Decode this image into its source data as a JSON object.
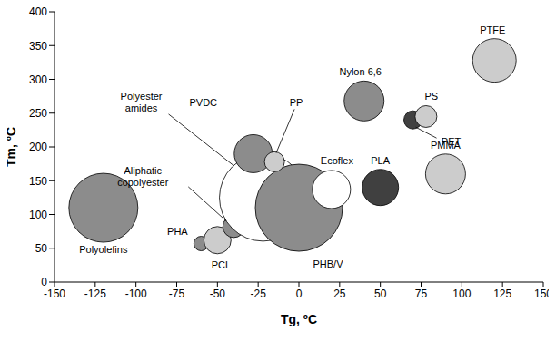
{
  "chart_data": {
    "type": "scatter",
    "marker": "circle",
    "grid": false,
    "x_label": "Tg, ºC",
    "y_label": "Tm, ºC",
    "xlim": [
      -150,
      150
    ],
    "xticks": [
      -150,
      -125,
      -100,
      -75,
      -50,
      -25,
      0,
      25,
      50,
      75,
      100,
      125,
      150
    ],
    "ylim": [
      0,
      400
    ],
    "yticks": [
      0,
      50,
      100,
      150,
      200,
      250,
      300,
      350,
      400
    ],
    "points": [
      {
        "label": "Polyolefins",
        "x": -120,
        "y": 110,
        "size": 38,
        "color": "#8c8c8c"
      },
      {
        "label": "PHA",
        "x": -60,
        "y": 57,
        "size": 8,
        "color": "#8c8c8c"
      },
      {
        "label": "PCL",
        "x": -50,
        "y": 62,
        "size": 15,
        "color": "#cccccc"
      },
      {
        "label": "Aliphatic copolyester",
        "x": -40,
        "y": 82,
        "size": 12,
        "color": "#8c8c8c"
      },
      {
        "label": "Polyester amides",
        "x": -22,
        "y": 125,
        "size": 48,
        "color": "#ffffff"
      },
      {
        "label": "PHB/V",
        "x": 0,
        "y": 110,
        "size": 48,
        "color": "#8c8c8c"
      },
      {
        "label": "Ecoflex",
        "x": 20,
        "y": 137,
        "size": 21,
        "color": "#ffffff"
      },
      {
        "label": "PVDC",
        "x": -28,
        "y": 190,
        "size": 21,
        "color": "#8c8c8c"
      },
      {
        "label": "PP",
        "x": -15,
        "y": 178,
        "size": 11,
        "color": "#cccccc"
      },
      {
        "label": "Nylon 6,6",
        "x": 40,
        "y": 268,
        "size": 22,
        "color": "#8c8c8c"
      },
      {
        "label": "PLA",
        "x": 50,
        "y": 140,
        "size": 20,
        "color": "#404040"
      },
      {
        "label": "PET",
        "x": 70,
        "y": 240,
        "size": 10,
        "color": "#404040"
      },
      {
        "label": "PS",
        "x": 78,
        "y": 245,
        "size": 12,
        "color": "#cccccc"
      },
      {
        "label": "PMMA",
        "x": 90,
        "y": 160,
        "size": 22,
        "color": "#cccccc"
      },
      {
        "label": "PTFE",
        "x": 120,
        "y": 328,
        "size": 24,
        "color": "#cccccc"
      }
    ]
  }
}
